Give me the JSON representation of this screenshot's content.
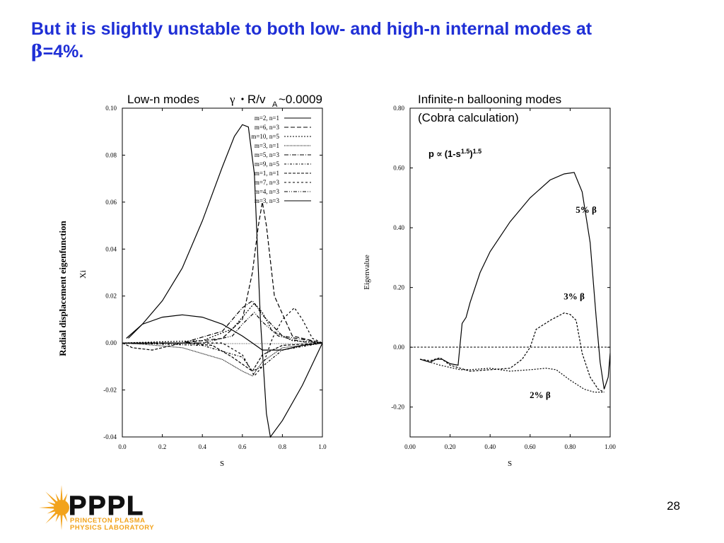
{
  "slide": {
    "title_line1": "But it is slightly unstable to both low- and high-n internal modes at",
    "title_beta": "β",
    "title_rest": "=4%.",
    "page_number": "28"
  },
  "logo": {
    "name": "PPPL",
    "line1": "PRINCETON PLASMA",
    "line2": "PHYSICS LABORATORY",
    "colors": {
      "sun": "#f2a31c",
      "text": "#111111"
    }
  },
  "chart_data": [
    {
      "type": "line",
      "title_parts": [
        "Low-n modes",
        "γ",
        "R/v",
        "A",
        "~0.0009"
      ],
      "xlabel": "S",
      "ylabel": "Xi",
      "ylabel_outer": "Radial displacement eigenfunction",
      "xlim": [
        0.0,
        1.0
      ],
      "ylim": [
        -0.04,
        0.1
      ],
      "xticks": [
        "0.0",
        "0.2",
        "0.4",
        "0.6",
        "0.8",
        "1.0"
      ],
      "yticks": [
        "0.10",
        "0.08",
        "0.06",
        "0.04",
        "0.02",
        "0.00",
        "-0.02",
        "-0.04"
      ],
      "legend_position": "top-right",
      "series": [
        {
          "name": "m=2, n=1",
          "dash": "",
          "x": [
            0.03,
            0.1,
            0.2,
            0.3,
            0.4,
            0.5,
            0.56,
            0.6,
            0.63,
            0.66,
            0.69,
            0.72,
            0.74,
            0.8,
            0.9,
            1.0
          ],
          "y": [
            0.002,
            0.008,
            0.018,
            0.032,
            0.052,
            0.075,
            0.088,
            0.093,
            0.092,
            0.072,
            0.01,
            -0.03,
            -0.04,
            -0.033,
            -0.018,
            0.0
          ]
        },
        {
          "name": "m=6, n=3",
          "dash": "6,3",
          "x": [
            0.0,
            0.3,
            0.5,
            0.6,
            0.65,
            0.68,
            0.7,
            0.72,
            0.76,
            0.85,
            1.0
          ],
          "y": [
            0.0,
            0.0,
            0.002,
            0.01,
            0.03,
            0.05,
            0.06,
            0.05,
            0.02,
            0.003,
            0.0
          ]
        },
        {
          "name": "m=10, n=5",
          "dash": "2,2",
          "x": [
            0.0,
            0.4,
            0.55,
            0.62,
            0.66,
            0.7,
            0.75,
            0.85,
            1.0
          ],
          "y": [
            0.0,
            0.001,
            0.006,
            0.013,
            0.017,
            0.013,
            0.005,
            0.001,
            0.0
          ]
        },
        {
          "name": "m=3, n=1",
          "dash": "1,1",
          "x": [
            0.0,
            0.1,
            0.3,
            0.5,
            0.6,
            0.65,
            0.7,
            0.8,
            1.0
          ],
          "y": [
            0.0,
            -0.0005,
            -0.002,
            -0.007,
            -0.012,
            -0.014,
            -0.008,
            -0.002,
            0.0
          ]
        },
        {
          "name": "m=5, n=3",
          "dash": "6,2,1,2",
          "x": [
            0.0,
            0.3,
            0.5,
            0.6,
            0.65,
            0.7,
            0.8,
            1.0
          ],
          "y": [
            0.0,
            0.0,
            0.005,
            0.015,
            0.018,
            0.012,
            0.003,
            0.0
          ]
        },
        {
          "name": "m=9, n=5",
          "dash": "3,2,1,2",
          "x": [
            0.0,
            0.4,
            0.6,
            0.65,
            0.7,
            0.8,
            1.0
          ],
          "y": [
            0.0,
            -0.001,
            -0.006,
            -0.012,
            -0.01,
            -0.003,
            0.0
          ]
        },
        {
          "name": "m=1, n=1",
          "dash": "4,2",
          "x": [
            0.0,
            0.05,
            0.15,
            0.3,
            0.45,
            0.55,
            0.65,
            0.7,
            0.8,
            1.0
          ],
          "y": [
            0.0,
            -0.002,
            -0.003,
            0.0,
            -0.001,
            -0.006,
            -0.012,
            -0.005,
            -0.001,
            0.0
          ]
        },
        {
          "name": "m=7, n=3",
          "dash": "3,3",
          "x": [
            0.0,
            0.5,
            0.6,
            0.66,
            0.7,
            0.75,
            0.8,
            0.86,
            0.9,
            0.95,
            1.0
          ],
          "y": [
            0.0,
            0.0,
            -0.005,
            -0.014,
            -0.01,
            0.002,
            0.01,
            0.015,
            0.01,
            0.002,
            0.0
          ]
        },
        {
          "name": "m=4, n=3",
          "dash": "5,2,1,2,1,2",
          "x": [
            0.0,
            0.4,
            0.55,
            0.6,
            0.66,
            0.7,
            0.78,
            0.9,
            1.0
          ],
          "y": [
            0.0,
            0.0,
            0.003,
            0.008,
            0.013,
            0.009,
            0.003,
            0.0005,
            0.0
          ]
        },
        {
          "name": "m=3, n=3",
          "dash": "",
          "x": [
            0.02,
            0.1,
            0.2,
            0.3,
            0.4,
            0.5,
            0.6,
            0.65,
            0.7,
            0.8,
            0.9,
            1.0
          ],
          "y": [
            0.002,
            0.008,
            0.011,
            0.012,
            0.011,
            0.008,
            0.003,
            0.0,
            -0.003,
            -0.003,
            -0.001,
            0.0
          ]
        }
      ]
    },
    {
      "type": "line",
      "title_line1": "Infinite-n ballooning modes",
      "title_line2": "(Cobra calculation)",
      "formula": {
        "p": "p",
        "prop": "∝",
        "base": "(1-s",
        "exp1": "1.5",
        "close": ")",
        "exp2": "1.5"
      },
      "xlabel": "S",
      "ylabel": "Eigenvalue",
      "xlim": [
        0.0,
        1.0
      ],
      "ylim": [
        -0.3,
        0.8
      ],
      "xticks": [
        "0.00",
        "0.20",
        "0.40",
        "0.60",
        "0.80",
        "1.00"
      ],
      "yticks": [
        "0.80",
        "0.60",
        "0.40",
        "0.20",
        "0.00",
        "-0.20"
      ],
      "zero_line": true,
      "annotations": [
        {
          "text": "5% β",
          "x": 0.88,
          "y": 0.45
        },
        {
          "text": "3% β",
          "x": 0.82,
          "y": 0.16
        },
        {
          "text": "2% β",
          "x": 0.65,
          "y": -0.17
        }
      ],
      "series": [
        {
          "name": "5% β",
          "dash": "",
          "x": [
            0.05,
            0.1,
            0.13,
            0.16,
            0.2,
            0.24,
            0.26,
            0.28,
            0.3,
            0.35,
            0.4,
            0.5,
            0.6,
            0.7,
            0.77,
            0.82,
            0.86,
            0.9,
            0.93,
            0.95,
            0.97,
            0.99,
            1.0
          ],
          "y": [
            -0.04,
            -0.05,
            -0.04,
            -0.04,
            -0.055,
            -0.06,
            0.08,
            0.1,
            0.15,
            0.25,
            0.32,
            0.42,
            0.5,
            0.56,
            0.58,
            0.585,
            0.52,
            0.35,
            0.1,
            -0.05,
            -0.14,
            -0.1,
            -0.02
          ]
        },
        {
          "name": "3% β",
          "dash": "3,2",
          "x": [
            0.05,
            0.1,
            0.15,
            0.2,
            0.3,
            0.4,
            0.5,
            0.56,
            0.6,
            0.63,
            0.7,
            0.77,
            0.8,
            0.83,
            0.86,
            0.9,
            0.94,
            0.97
          ],
          "y": [
            -0.04,
            -0.045,
            -0.035,
            -0.06,
            -0.08,
            -0.075,
            -0.07,
            -0.04,
            0.0,
            0.06,
            0.09,
            0.115,
            0.11,
            0.09,
            -0.02,
            -0.1,
            -0.14,
            -0.15
          ]
        },
        {
          "name": "2% β",
          "dash": "2,2",
          "x": [
            0.05,
            0.15,
            0.25,
            0.3,
            0.4,
            0.5,
            0.6,
            0.68,
            0.73,
            0.8,
            0.87,
            0.92,
            0.97
          ],
          "y": [
            -0.04,
            -0.06,
            -0.075,
            -0.075,
            -0.07,
            -0.08,
            -0.075,
            -0.07,
            -0.075,
            -0.11,
            -0.14,
            -0.15,
            -0.15
          ]
        }
      ]
    }
  ]
}
